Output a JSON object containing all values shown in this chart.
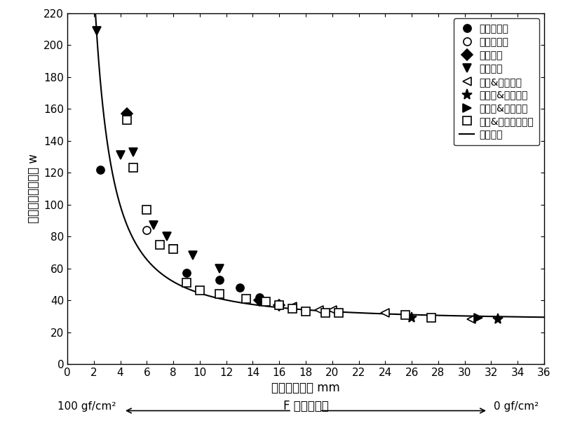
{
  "title": "",
  "xlabel": "承压絮片厅度 mm",
  "ylabel": "平方米传导散热量 w",
  "xlim": [
    0,
    36
  ],
  "ylim": [
    0,
    220
  ],
  "xticks": [
    0,
    2,
    4,
    6,
    8,
    10,
    12,
    14,
    16,
    18,
    20,
    22,
    24,
    26,
    28,
    30,
    32,
    34,
    36
  ],
  "yticks": [
    0,
    20,
    40,
    60,
    80,
    100,
    120,
    140,
    160,
    180,
    200,
    220
  ],
  "bottom_label": "F 压缩作用力",
  "bottom_left": "100 gf/cm²",
  "bottom_right": "0 gf/cm²",
  "series": [
    {
      "name": "绵羊绒絮片",
      "marker": "o",
      "fillstyle": "full",
      "points": [
        [
          2.5,
          122
        ],
        [
          9.0,
          57
        ],
        [
          11.5,
          53
        ],
        [
          13.0,
          48
        ],
        [
          14.5,
          42
        ]
      ]
    },
    {
      "name": "牽牛绒絮片",
      "marker": "o",
      "fillstyle": "none",
      "points": [
        [
          6.0,
          84
        ]
      ]
    },
    {
      "name": "兔绒絮片",
      "marker": "D",
      "fillstyle": "full",
      "points": [
        [
          4.5,
          157
        ],
        [
          14.5,
          40
        ],
        [
          16.0,
          37
        ]
      ]
    },
    {
      "name": "骆绒絮片",
      "marker": "v",
      "fillstyle": "full",
      "points": [
        [
          2.2,
          209
        ],
        [
          4.0,
          131
        ],
        [
          5.0,
          133
        ],
        [
          6.5,
          87
        ],
        [
          7.5,
          80
        ],
        [
          8.0,
          72
        ],
        [
          9.5,
          68
        ],
        [
          11.5,
          60
        ]
      ]
    },
    {
      "name": "骆绒&鸭绒絮片",
      "marker": "<",
      "fillstyle": "none",
      "points": [
        [
          17.0,
          36
        ],
        [
          19.0,
          34
        ],
        [
          20.0,
          34
        ],
        [
          24.0,
          32
        ],
        [
          30.5,
          28
        ]
      ]
    },
    {
      "name": "绵羊绒&鸭绒絮片",
      "marker": "*",
      "fillstyle": "full",
      "points": [
        [
          26.0,
          29
        ],
        [
          32.5,
          28
        ]
      ]
    },
    {
      "name": "牽牛绒&鸭绒絮片",
      "marker": ">",
      "fillstyle": "full",
      "points": [
        [
          31.0,
          29
        ]
      ]
    },
    {
      "name": "木棉&鸭绒系列絮片",
      "marker": "s",
      "fillstyle": "none",
      "points": [
        [
          4.5,
          153
        ],
        [
          5.0,
          123
        ],
        [
          6.0,
          97
        ],
        [
          7.0,
          75
        ],
        [
          8.0,
          72
        ],
        [
          9.0,
          51
        ],
        [
          10.0,
          46
        ],
        [
          11.5,
          44
        ],
        [
          13.5,
          41
        ],
        [
          15.0,
          39
        ],
        [
          16.0,
          37
        ],
        [
          17.0,
          35
        ],
        [
          18.0,
          33
        ],
        [
          19.5,
          32
        ],
        [
          20.5,
          32
        ],
        [
          25.5,
          31
        ],
        [
          27.5,
          29
        ]
      ]
    }
  ],
  "legend_entries": [
    {
      "name": "绵羊绒絮片",
      "marker": "o",
      "fillstyle": "full"
    },
    {
      "name": "牽牛绒絮片",
      "marker": "o",
      "fillstyle": "none"
    },
    {
      "name": "兔绒絮片",
      "marker": "D",
      "fillstyle": "full"
    },
    {
      "name": "骆绒絮片",
      "marker": "v",
      "fillstyle": "full"
    },
    {
      "name": "骆绒&鸭绒絮片",
      "marker": "<",
      "fillstyle": "none"
    },
    {
      "name": "绵羊绒&鸭绒絮片",
      "marker": "*",
      "fillstyle": "full"
    },
    {
      "name": "牽牛绒&鸭绒絮片",
      "marker": ">",
      "fillstyle": "full"
    },
    {
      "name": "木棉&鸭绒系列絮片",
      "marker": "s",
      "fillstyle": "none"
    },
    {
      "name": "拟合曲线",
      "marker": "none",
      "fillstyle": "full"
    }
  ]
}
